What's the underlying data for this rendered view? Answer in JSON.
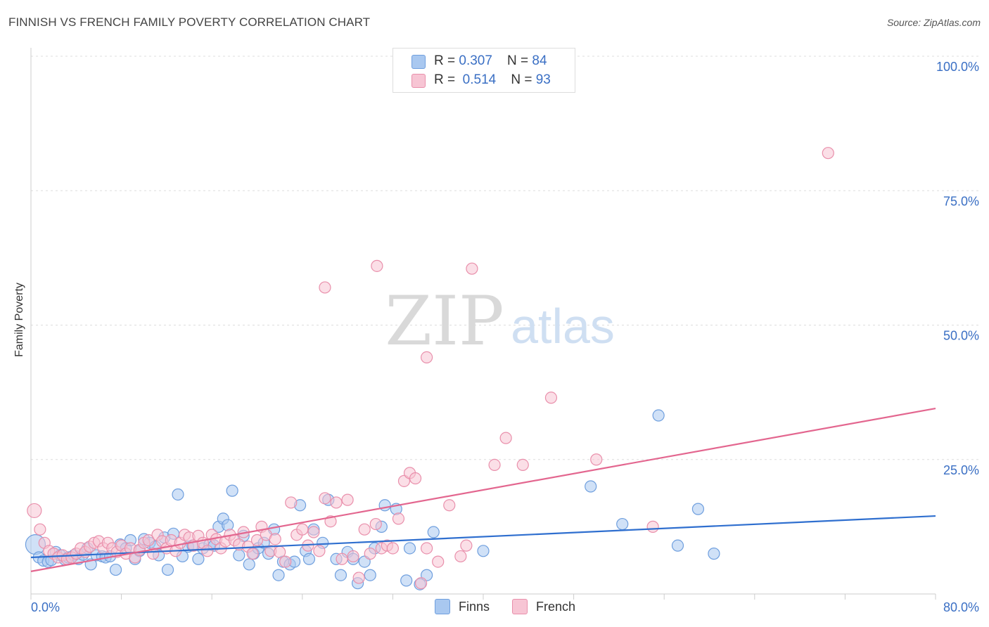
{
  "title": "FINNISH VS FRENCH FAMILY POVERTY CORRELATION CHART",
  "source": "Source: ZipAtlas.com",
  "watermark": {
    "zip": "ZIP",
    "atlas": "atlas"
  },
  "legend_top": {
    "rows": [
      {
        "r_label": "R = ",
        "r_value": "0.307",
        "n_label": "N = ",
        "n_value": "84"
      },
      {
        "r_label": "R = ",
        "r_value": "0.514",
        "n_label": "N = ",
        "n_value": "93"
      }
    ]
  },
  "legend_bottom": [
    "Finns",
    "French"
  ],
  "colors": {
    "finns_fill": "#a9c8f0",
    "finns_stroke": "#6f9fde",
    "finns_line": "#2f6fcf",
    "french_fill": "#f7c5d4",
    "french_stroke": "#e98fab",
    "french_line": "#e3668f",
    "axis_text": "#3a6fc4",
    "grid": "#dddddd"
  },
  "chart_data": {
    "type": "scatter",
    "title": "FINNISH VS FRENCH FAMILY POVERTY CORRELATION CHART",
    "xlabel": "",
    "ylabel": "Family Poverty",
    "xlim": [
      0,
      80
    ],
    "ylim": [
      0,
      105
    ],
    "x_tick_labels": [
      "0.0%",
      "80.0%"
    ],
    "y_ticks": [
      25,
      50,
      75,
      100
    ],
    "y_tick_labels": [
      "25.0%",
      "50.0%",
      "75.0%",
      "100.0%"
    ],
    "grid": true,
    "legend_position": "bottom",
    "series": [
      {
        "name": "Finns",
        "r": 0.307,
        "n": 84,
        "trend": {
          "x": [
            0,
            80
          ],
          "y": [
            6.8,
            14.5
          ]
        },
        "points": [
          [
            0.4,
            9.2
          ],
          [
            0.7,
            6.8
          ],
          [
            1.1,
            6.2
          ],
          [
            1.5,
            6.0
          ],
          [
            1.8,
            6.3
          ],
          [
            2.2,
            7.8
          ],
          [
            2.6,
            7.2
          ],
          [
            3.0,
            6.4
          ],
          [
            3.3,
            6.8
          ],
          [
            3.8,
            7.2
          ],
          [
            4.2,
            6.5
          ],
          [
            4.6,
            7.3
          ],
          [
            5.0,
            8.5
          ],
          [
            5.3,
            5.5
          ],
          [
            5.8,
            7.2
          ],
          [
            6.3,
            7.0
          ],
          [
            6.6,
            6.8
          ],
          [
            7.0,
            7.0
          ],
          [
            7.5,
            4.5
          ],
          [
            7.9,
            9.2
          ],
          [
            8.4,
            8.5
          ],
          [
            8.8,
            10.0
          ],
          [
            9.2,
            6.5
          ],
          [
            9.6,
            8.0
          ],
          [
            10.0,
            10.2
          ],
          [
            10.5,
            9.5
          ],
          [
            11.0,
            8.8
          ],
          [
            11.3,
            7.2
          ],
          [
            11.8,
            10.5
          ],
          [
            12.1,
            4.5
          ],
          [
            12.6,
            11.2
          ],
          [
            13.0,
            18.5
          ],
          [
            13.4,
            7.0
          ],
          [
            13.9,
            8.8
          ],
          [
            14.3,
            9.0
          ],
          [
            14.8,
            6.5
          ],
          [
            15.2,
            8.5
          ],
          [
            15.8,
            9.2
          ],
          [
            16.2,
            9.0
          ],
          [
            16.6,
            12.5
          ],
          [
            17.0,
            14.0
          ],
          [
            17.4,
            12.8
          ],
          [
            17.8,
            19.2
          ],
          [
            18.4,
            7.2
          ],
          [
            18.8,
            10.8
          ],
          [
            19.3,
            5.5
          ],
          [
            19.7,
            7.5
          ],
          [
            20.1,
            8.5
          ],
          [
            20.6,
            9.5
          ],
          [
            21.0,
            7.5
          ],
          [
            21.5,
            12.0
          ],
          [
            21.9,
            3.5
          ],
          [
            22.3,
            6.0
          ],
          [
            22.9,
            5.5
          ],
          [
            23.3,
            6.0
          ],
          [
            23.8,
            16.5
          ],
          [
            24.3,
            8.0
          ],
          [
            24.6,
            6.5
          ],
          [
            25.0,
            12.0
          ],
          [
            25.8,
            9.5
          ],
          [
            26.3,
            17.5
          ],
          [
            27.0,
            6.5
          ],
          [
            27.4,
            3.5
          ],
          [
            28.0,
            7.8
          ],
          [
            28.5,
            6.5
          ],
          [
            28.9,
            2.0
          ],
          [
            29.5,
            6.0
          ],
          [
            30.0,
            3.5
          ],
          [
            30.4,
            8.5
          ],
          [
            31.0,
            12.5
          ],
          [
            31.3,
            16.5
          ],
          [
            32.3,
            15.8
          ],
          [
            33.2,
            2.5
          ],
          [
            33.5,
            8.5
          ],
          [
            34.4,
            1.8
          ],
          [
            35.0,
            3.5
          ],
          [
            35.6,
            11.5
          ],
          [
            49.5,
            20.0
          ],
          [
            52.3,
            13.0
          ],
          [
            55.5,
            33.2
          ],
          [
            57.2,
            9.0
          ],
          [
            59.0,
            15.8
          ],
          [
            60.4,
            7.5
          ],
          [
            40.0,
            8.0
          ]
        ]
      },
      {
        "name": "French",
        "r": 0.514,
        "n": 93,
        "trend": {
          "x": [
            0,
            80
          ],
          "y": [
            4.2,
            34.5
          ]
        },
        "points": [
          [
            0.3,
            15.5
          ],
          [
            0.8,
            12.0
          ],
          [
            1.2,
            9.5
          ],
          [
            1.6,
            8.0
          ],
          [
            2.0,
            7.5
          ],
          [
            2.4,
            6.8
          ],
          [
            2.8,
            7.2
          ],
          [
            3.2,
            6.5
          ],
          [
            3.6,
            6.8
          ],
          [
            4.0,
            7.5
          ],
          [
            4.4,
            8.5
          ],
          [
            4.8,
            7.8
          ],
          [
            5.2,
            8.8
          ],
          [
            5.6,
            9.5
          ],
          [
            6.0,
            9.8
          ],
          [
            6.4,
            8.5
          ],
          [
            6.8,
            9.5
          ],
          [
            7.2,
            8.5
          ],
          [
            7.6,
            7.8
          ],
          [
            8.0,
            9.0
          ],
          [
            8.4,
            7.5
          ],
          [
            8.8,
            8.5
          ],
          [
            9.2,
            6.8
          ],
          [
            9.6,
            8.2
          ],
          [
            10.0,
            9.5
          ],
          [
            10.4,
            10.0
          ],
          [
            10.8,
            7.5
          ],
          [
            11.2,
            11.0
          ],
          [
            11.6,
            9.8
          ],
          [
            12.0,
            8.5
          ],
          [
            12.4,
            10.0
          ],
          [
            12.8,
            8.0
          ],
          [
            13.2,
            9.5
          ],
          [
            13.6,
            11.0
          ],
          [
            14.0,
            10.5
          ],
          [
            14.4,
            9.0
          ],
          [
            14.8,
            10.8
          ],
          [
            15.2,
            9.5
          ],
          [
            15.6,
            8.0
          ],
          [
            16.0,
            11.0
          ],
          [
            16.4,
            10.2
          ],
          [
            16.8,
            8.5
          ],
          [
            17.2,
            9.8
          ],
          [
            17.6,
            11.0
          ],
          [
            18.0,
            10.0
          ],
          [
            18.4,
            9.2
          ],
          [
            18.8,
            11.5
          ],
          [
            19.2,
            8.8
          ],
          [
            19.6,
            7.5
          ],
          [
            20.0,
            10.0
          ],
          [
            20.4,
            12.5
          ],
          [
            20.8,
            11.0
          ],
          [
            21.2,
            8.0
          ],
          [
            21.6,
            10.2
          ],
          [
            22.0,
            7.8
          ],
          [
            22.5,
            6.0
          ],
          [
            23.0,
            17.0
          ],
          [
            23.5,
            11.0
          ],
          [
            24.0,
            12.0
          ],
          [
            24.5,
            9.0
          ],
          [
            25.0,
            11.5
          ],
          [
            25.5,
            8.0
          ],
          [
            26.0,
            17.8
          ],
          [
            26.5,
            13.5
          ],
          [
            27.0,
            17.0
          ],
          [
            27.5,
            6.5
          ],
          [
            28.0,
            17.5
          ],
          [
            28.5,
            7.0
          ],
          [
            29.0,
            3.0
          ],
          [
            29.5,
            12.0
          ],
          [
            30.0,
            7.5
          ],
          [
            30.5,
            13.0
          ],
          [
            31.0,
            8.5
          ],
          [
            31.5,
            9.0
          ],
          [
            32.0,
            8.5
          ],
          [
            32.5,
            14.0
          ],
          [
            33.0,
            21.0
          ],
          [
            33.5,
            22.5
          ],
          [
            34.0,
            21.5
          ],
          [
            34.5,
            2.0
          ],
          [
            35.0,
            8.5
          ],
          [
            36.0,
            6.0
          ],
          [
            37.0,
            16.5
          ],
          [
            38.0,
            7.0
          ],
          [
            38.5,
            9.0
          ],
          [
            39.0,
            60.5
          ],
          [
            41.0,
            24.0
          ],
          [
            42.0,
            29.0
          ],
          [
            43.5,
            24.0
          ],
          [
            46.0,
            36.5
          ],
          [
            50.0,
            25.0
          ],
          [
            55.0,
            12.5
          ],
          [
            70.5,
            82.0
          ]
        ]
      }
    ],
    "outlier_labels": {
      "french_high": [
        [
          35.0,
          44.0
        ],
        [
          26.0,
          57.0
        ],
        [
          30.6,
          61.0
        ]
      ]
    }
  }
}
